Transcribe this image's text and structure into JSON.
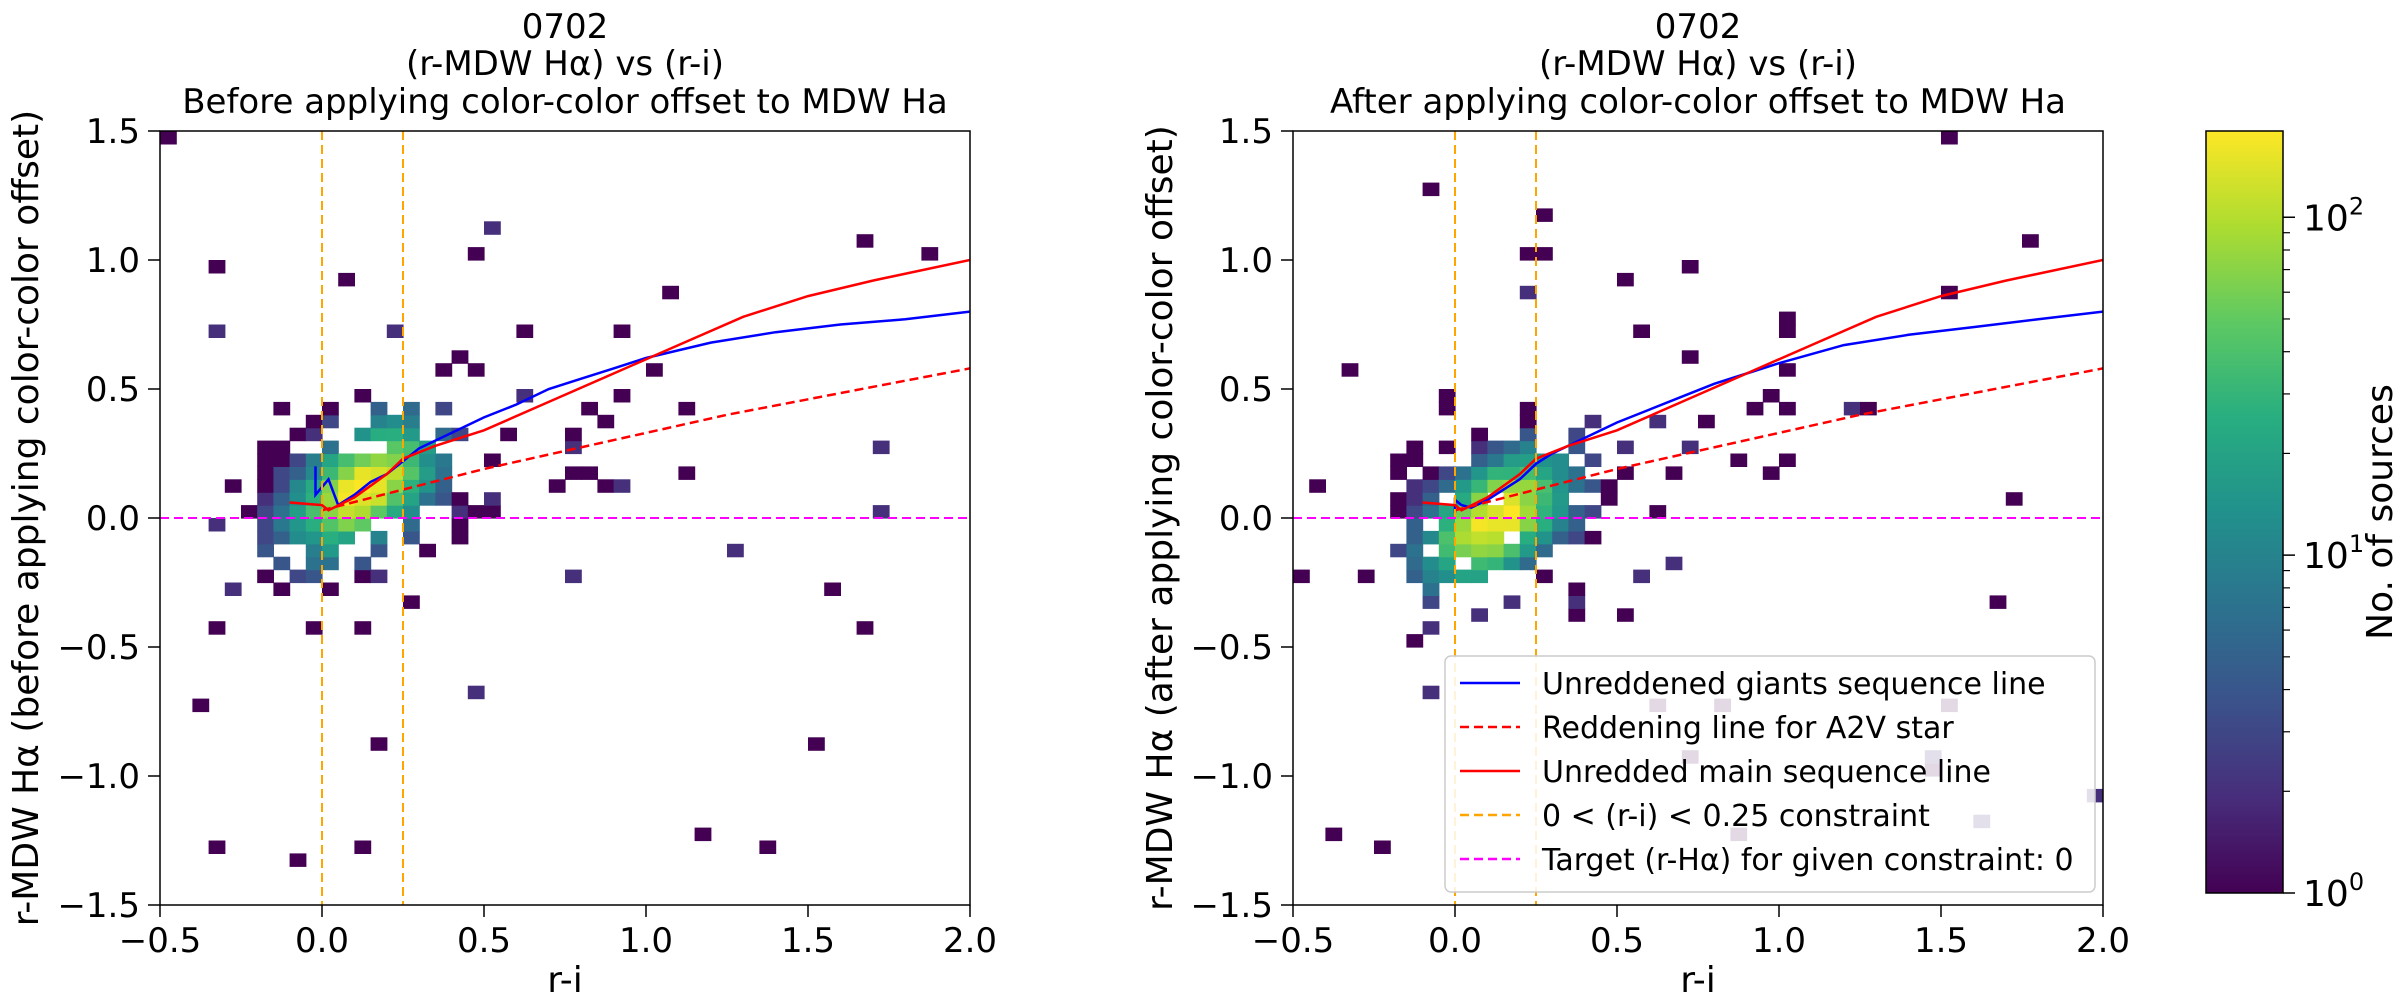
{
  "chart_data": [
    {
      "type": "heatmap",
      "title_lines": [
        "0702",
        "(r-MDW Hα) vs (r-i)",
        "Before applying color-color offset to MDW Ha"
      ],
      "xlabel": "r-i",
      "ylabel": "r-MDW Hα (before applying color-color offset)",
      "xlim": [
        -0.5,
        2.0
      ],
      "ylim": [
        -1.5,
        1.5
      ],
      "xticks": [
        -0.5,
        0.0,
        0.5,
        1.0,
        1.5,
        2.0
      ],
      "xtick_labels": [
        "−0.5",
        "0.0",
        "0.5",
        "1.0",
        "1.5",
        "2.0"
      ],
      "yticks": [
        -1.5,
        -1.0,
        -0.5,
        0.0,
        0.5,
        1.0,
        1.5
      ],
      "ytick_labels": [
        "−1.5",
        "−1.0",
        "−0.5",
        "0.0",
        "0.5",
        "1.0",
        "1.5"
      ],
      "density_center": [
        0.13,
        0.12
      ],
      "density_spread": [
        0.17,
        0.17
      ],
      "density_tilt": 0.55,
      "seed": 7,
      "series": [
        {
          "name": "Unreddened giants sequence line",
          "color": "#0000ff",
          "dash": "solid",
          "x": [
            -0.02,
            -0.02,
            0.02,
            0.05,
            0.1,
            0.15,
            0.2,
            0.25,
            0.3,
            0.4,
            0.5,
            0.6,
            0.7,
            0.8,
            0.9,
            1.0,
            1.2,
            1.4,
            1.6,
            1.8,
            2.0
          ],
          "y": [
            0.2,
            0.09,
            0.15,
            0.05,
            0.09,
            0.14,
            0.17,
            0.22,
            0.27,
            0.33,
            0.39,
            0.44,
            0.5,
            0.54,
            0.58,
            0.62,
            0.68,
            0.72,
            0.75,
            0.77,
            0.8
          ]
        },
        {
          "name": "Reddening line for A2V star",
          "color": "#ff0000",
          "dash": "dashed",
          "x": [
            0.0,
            0.25,
            0.5,
            0.75,
            1.0,
            1.25,
            1.5,
            1.75,
            2.0
          ],
          "y": [
            0.03,
            0.11,
            0.19,
            0.26,
            0.33,
            0.4,
            0.46,
            0.52,
            0.58
          ]
        },
        {
          "name": "Unredded main sequence line",
          "color": "#ff0000",
          "dash": "solid",
          "x": [
            -0.1,
            0.0,
            0.02,
            0.1,
            0.2,
            0.25,
            0.35,
            0.5,
            0.7,
            0.9,
            1.1,
            1.3,
            1.5,
            1.7,
            2.0
          ],
          "y": [
            0.06,
            0.05,
            0.03,
            0.08,
            0.17,
            0.23,
            0.28,
            0.34,
            0.45,
            0.56,
            0.67,
            0.78,
            0.86,
            0.92,
            1.0
          ]
        },
        {
          "name": "0 < (r-i) < 0.25 constraint",
          "color": "#ffa500",
          "dash": "dashed",
          "vlines": [
            0.0,
            0.25
          ]
        },
        {
          "name": "Target (r-Hα) for given constraint: 0",
          "color": "#ff00ff",
          "dash": "dashed",
          "hline": 0.0
        }
      ]
    },
    {
      "type": "heatmap",
      "title_lines": [
        "0702",
        "(r-MDW Hα) vs (r-i)",
        "After applying color-color offset to MDW Ha"
      ],
      "xlabel": "r-i",
      "ylabel": "r-MDW Hα (after applying color-color offset)",
      "xlim": [
        -0.5,
        2.0
      ],
      "ylim": [
        -1.5,
        1.5
      ],
      "xticks": [
        -0.5,
        0.0,
        0.5,
        1.0,
        1.5,
        2.0
      ],
      "xtick_labels": [
        "−0.5",
        "0.0",
        "0.5",
        "1.0",
        "1.5",
        "2.0"
      ],
      "yticks": [
        -1.5,
        -1.0,
        -0.5,
        0.0,
        0.5,
        1.0,
        1.5
      ],
      "ytick_labels": [
        "−1.5",
        "−1.0",
        "−0.5",
        "0.0",
        "0.5",
        "1.0",
        "1.5"
      ],
      "density_center": [
        0.13,
        0.0
      ],
      "density_spread": [
        0.17,
        0.17
      ],
      "density_tilt": 0.55,
      "seed": 13,
      "series": [
        {
          "name": "Unreddened giants sequence line",
          "color": "#0000ff",
          "dash": "solid",
          "x": [
            0.0,
            0.0,
            0.02,
            0.05,
            0.1,
            0.15,
            0.2,
            0.25,
            0.3,
            0.4,
            0.5,
            0.6,
            0.7,
            0.8,
            0.9,
            1.0,
            1.2,
            1.4,
            1.6,
            1.8,
            2.0
          ],
          "y": [
            0.02,
            0.07,
            0.05,
            0.04,
            0.07,
            0.11,
            0.15,
            0.21,
            0.25,
            0.31,
            0.37,
            0.42,
            0.47,
            0.52,
            0.56,
            0.6,
            0.67,
            0.71,
            0.74,
            0.77,
            0.8
          ]
        },
        {
          "name": "Reddening line for A2V star",
          "color": "#ff0000",
          "dash": "dashed",
          "x": [
            0.0,
            0.25,
            0.5,
            0.75,
            1.0,
            1.25,
            1.5,
            1.75,
            2.0
          ],
          "y": [
            0.03,
            0.11,
            0.19,
            0.26,
            0.33,
            0.4,
            0.46,
            0.52,
            0.58
          ]
        },
        {
          "name": "Unredded main sequence line",
          "color": "#ff0000",
          "dash": "solid",
          "x": [
            -0.1,
            0.0,
            0.02,
            0.1,
            0.2,
            0.25,
            0.35,
            0.5,
            0.7,
            0.9,
            1.1,
            1.3,
            1.5,
            1.7,
            2.0
          ],
          "y": [
            0.06,
            0.05,
            0.03,
            0.08,
            0.17,
            0.23,
            0.28,
            0.34,
            0.45,
            0.56,
            0.67,
            0.78,
            0.86,
            0.92,
            1.0
          ]
        },
        {
          "name": "0 < (r-i) < 0.25 constraint",
          "color": "#ffa500",
          "dash": "dashed",
          "vlines": [
            0.0,
            0.25
          ]
        },
        {
          "name": "Target (r-Hα) for given constraint: 0",
          "color": "#ff00ff",
          "dash": "dashed",
          "hline": 0.0
        }
      ],
      "legend": {
        "placement": "lower-right",
        "entries": [
          {
            "label": "Unreddened giants sequence line",
            "color": "#0000ff",
            "dash": "solid"
          },
          {
            "label": "Reddening line for A2V star",
            "color": "#ff0000",
            "dash": "dashed"
          },
          {
            "label": "Unredded main sequence line",
            "color": "#ff0000",
            "dash": "solid"
          },
          {
            "label": "0 < (r-i) < 0.25 constraint",
            "color": "#ffa500",
            "dash": "dashed"
          },
          {
            "label": "Target (r-Hα) for given constraint: 0",
            "color": "#ff00ff",
            "dash": "dashed"
          }
        ]
      }
    }
  ],
  "colorbar": {
    "label": "No. of sources",
    "scale": "log",
    "range": [
      1,
      180
    ],
    "colormap": "viridis",
    "ticks": [
      {
        "value": 1,
        "base": "10",
        "exp": "0"
      },
      {
        "value": 10,
        "base": "10",
        "exp": "1"
      },
      {
        "value": 100,
        "base": "10",
        "exp": "2"
      }
    ]
  }
}
